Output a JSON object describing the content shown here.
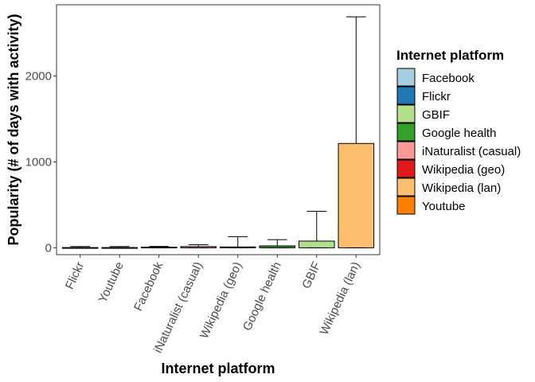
{
  "chart_data": {
    "type": "bar",
    "categories": [
      "Flickr",
      "Youtube",
      "Facebook",
      "iNaturalist (casual)",
      "Wikipedia (geo)",
      "Google health",
      "GBIF",
      "Wikipedia (lan)"
    ],
    "values": [
      3,
      3,
      8,
      14,
      10,
      22,
      78,
      1215
    ],
    "error_upper": [
      15,
      15,
      16,
      36,
      130,
      95,
      425,
      2690
    ],
    "error_lower": [
      0,
      0,
      0,
      0,
      0,
      0,
      0,
      0
    ],
    "ylabel": "Popularity (# of days with activity)",
    "xlabel": "Internet platform",
    "ylim": [
      -80,
      2830
    ],
    "yticks": [
      0,
      1000,
      2000
    ],
    "grid": false,
    "legend": {
      "title": "Internet platform",
      "placement": "right",
      "entries": [
        {
          "name": "Facebook",
          "color": "#a6cee3"
        },
        {
          "name": "Flickr",
          "color": "#1f78b4"
        },
        {
          "name": "GBIF",
          "color": "#b2df8a"
        },
        {
          "name": "Google health",
          "color": "#33a02c"
        },
        {
          "name": "iNaturalist (casual)",
          "color": "#fb9a99"
        },
        {
          "name": "Wikipedia (geo)",
          "color": "#e31a1c"
        },
        {
          "name": "Wikipedia (lan)",
          "color": "#fdbf6f"
        },
        {
          "name": "Youtube",
          "color": "#ff7f00"
        }
      ]
    },
    "bar_colors": {
      "Flickr": "#1f78b4",
      "Youtube": "#ff7f00",
      "Facebook": "#a6cee3",
      "iNaturalist (casual)": "#fb9a99",
      "Wikipedia (geo)": "#e31a1c",
      "Google health": "#33a02c",
      "GBIF": "#b2df8a",
      "Wikipedia (lan)": "#fdbf6f"
    }
  }
}
